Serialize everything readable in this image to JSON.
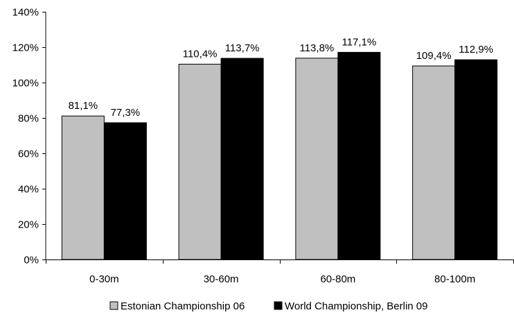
{
  "chart_data": {
    "type": "bar",
    "categories": [
      "0-30m",
      "30-60m",
      "60-80m",
      "80-100m"
    ],
    "series": [
      {
        "name": "Estonian Championship 06",
        "values": [
          81.1,
          110.4,
          113.8,
          109.4
        ],
        "labels": [
          "81,1%",
          "110,4%",
          "113,8%",
          "109,4%"
        ],
        "color": "#c0c0c0"
      },
      {
        "name": "World Championship, Berlin 09",
        "values": [
          77.3,
          113.7,
          117.1,
          112.9
        ],
        "labels": [
          "77,3%",
          "113,7%",
          "117,1%",
          "112,9%"
        ],
        "color": "#000000"
      }
    ],
    "ylim": [
      0,
      140
    ],
    "yticks": [
      0,
      20,
      40,
      60,
      80,
      100,
      120,
      140
    ],
    "ytick_labels": [
      "0%",
      "20%",
      "40%",
      "60%",
      "80%",
      "100%",
      "120%",
      "140%"
    ],
    "grid": false,
    "legend_position": "bottom",
    "title": "",
    "xlabel": "",
    "ylabel": ""
  }
}
